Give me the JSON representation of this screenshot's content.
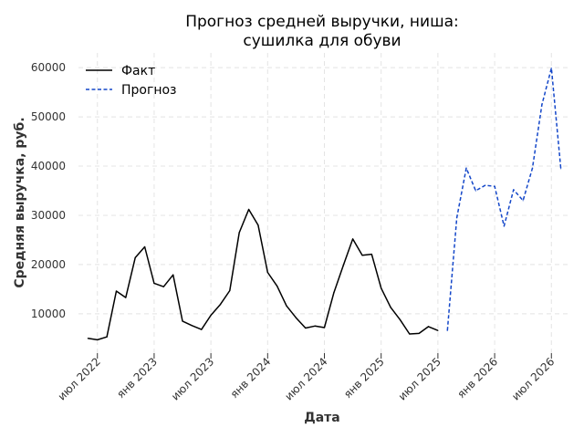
{
  "chart_data": {
    "type": "line",
    "title_lines": [
      "Прогноз средней выручки, ниша:",
      "сушилка для обуви"
    ],
    "xlabel": "Дата",
    "ylabel": "Средняя выручка, руб.",
    "y_ticks": [
      10000,
      20000,
      30000,
      40000,
      50000,
      60000
    ],
    "y_tick_labels": [
      "10000",
      "20000",
      "30000",
      "40000",
      "50000",
      "60000"
    ],
    "x_ticks": [
      "2022-07",
      "2023-01",
      "2023-07",
      "2024-01",
      "2024-07",
      "2025-01",
      "2025-07",
      "2026-01",
      "2026-07"
    ],
    "x_tick_labels": [
      "июл 2022",
      "янв 2023",
      "июл 2023",
      "янв 2024",
      "июл 2024",
      "янв 2025",
      "июл 2025",
      "янв 2026",
      "июл 2026"
    ],
    "xlim": [
      "2022-05",
      "2026-09"
    ],
    "ylim": [
      2000,
      63000
    ],
    "grid": true,
    "legend_position": "top-left",
    "legend": [
      {
        "name": "Факт",
        "color": "#000000",
        "style": "solid"
      },
      {
        "name": "Прогноз",
        "color": "#1447c9",
        "style": "dashed"
      }
    ],
    "series": [
      {
        "name": "Факт",
        "color": "#000000",
        "style": "solid",
        "x": [
          "2022-06",
          "2022-07",
          "2022-08",
          "2022-09",
          "2022-10",
          "2022-11",
          "2022-12",
          "2023-01",
          "2023-02",
          "2023-03",
          "2023-04",
          "2023-05",
          "2023-06",
          "2023-07",
          "2023-08",
          "2023-09",
          "2023-10",
          "2023-11",
          "2023-12",
          "2024-01",
          "2024-02",
          "2024-03",
          "2024-04",
          "2024-05",
          "2024-06",
          "2024-07",
          "2024-08",
          "2024-09",
          "2024-10",
          "2024-11",
          "2024-12",
          "2025-01",
          "2025-02",
          "2025-03",
          "2025-04",
          "2025-05",
          "2025-06",
          "2025-07",
          "2025-08"
        ],
        "y": [
          5000,
          4700,
          5300,
          14600,
          13300,
          21400,
          23600,
          16200,
          15500,
          17900,
          8500,
          7600,
          6800,
          9700,
          11900,
          14700,
          26500,
          31200,
          28000,
          18400,
          15600,
          11600,
          9200,
          7100,
          7500,
          7200,
          14300,
          19800,
          25200,
          21900,
          22100,
          15200,
          11300,
          8800,
          5900,
          6000,
          7400,
          6600,
          null
        ]
      },
      {
        "name": "Прогноз",
        "color": "#1447c9",
        "style": "dashed",
        "x": [
          "2025-08",
          "2025-09",
          "2025-10",
          "2025-11",
          "2025-12",
          "2026-01",
          "2026-02",
          "2026-03",
          "2026-04",
          "2026-05",
          "2026-06",
          "2026-07",
          "2026-08"
        ],
        "y": [
          6600,
          29500,
          39600,
          35000,
          36100,
          35900,
          27800,
          35200,
          33000,
          39600,
          52500,
          59900,
          39500
        ]
      }
    ]
  }
}
